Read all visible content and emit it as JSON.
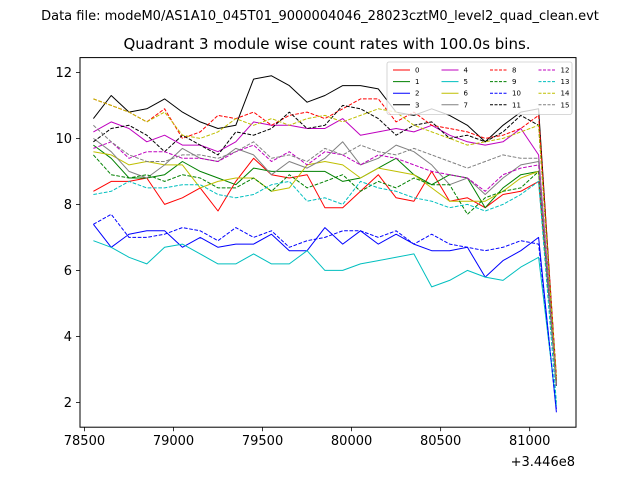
{
  "figure": {
    "suptitle": "Data file: modeM0/AS1A10_045T01_9000004046_28023cztM0_level2_quad_clean.evt",
    "title": "Quadrant 3 module wise count rates with 100.0s bins.",
    "x_offset_label": "+3.446e8"
  },
  "chart_data": {
    "type": "line",
    "title": "Quadrant 3 module wise count rates with 100.0s bins.",
    "xlabel": "",
    "ylabel": "",
    "x_offset": "+3.446e8",
    "xlim": [
      78475,
      81260
    ],
    "ylim": [
      1.25,
      12.45
    ],
    "xticks": [
      78500,
      79000,
      79500,
      80000,
      80500,
      81000
    ],
    "yticks": [
      2,
      4,
      6,
      8,
      10,
      12
    ],
    "grid": false,
    "legend_position": "top-right",
    "legend_columns": 4,
    "x": [
      78550,
      78650,
      78750,
      78850,
      78950,
      79050,
      79150,
      79250,
      79350,
      79450,
      79550,
      79650,
      79750,
      79850,
      79950,
      80050,
      80150,
      80250,
      80350,
      80450,
      80550,
      80650,
      80750,
      80850,
      80950,
      81050,
      81150
    ],
    "series": [
      {
        "name": "0",
        "color": "#ff0000",
        "dash": false,
        "values": [
          8.4,
          8.7,
          8.7,
          8.8,
          8.0,
          8.2,
          8.5,
          7.8,
          8.7,
          9.4,
          8.9,
          8.8,
          8.9,
          7.9,
          7.9,
          8.4,
          8.9,
          8.2,
          8.1,
          9.0,
          8.1,
          8.2,
          7.9,
          8.3,
          8.4,
          8.7,
          2.7
        ]
      },
      {
        "name": "1",
        "color": "#008000",
        "dash": false,
        "values": [
          9.8,
          9.4,
          8.8,
          8.8,
          8.9,
          9.3,
          9.0,
          8.8,
          8.6,
          9.1,
          9.0,
          9.0,
          9.0,
          9.0,
          8.7,
          8.8,
          9.1,
          9.4,
          8.9,
          8.6,
          8.9,
          8.8,
          7.9,
          8.5,
          8.9,
          9.0,
          2.5
        ]
      },
      {
        "name": "2",
        "color": "#0000ff",
        "dash": false,
        "values": [
          7.4,
          6.7,
          7.1,
          7.2,
          7.2,
          6.7,
          7.0,
          6.7,
          6.8,
          6.8,
          7.1,
          6.6,
          6.6,
          7.3,
          6.8,
          7.2,
          6.8,
          7.1,
          6.8,
          6.6,
          6.6,
          6.7,
          5.8,
          6.3,
          6.6,
          7.0,
          1.7
        ]
      },
      {
        "name": "3",
        "color": "#000000",
        "dash": false,
        "values": [
          10.6,
          11.3,
          10.8,
          10.9,
          11.2,
          10.8,
          10.5,
          10.3,
          10.4,
          11.8,
          11.9,
          11.6,
          11.1,
          11.3,
          11.6,
          11.6,
          11.5,
          10.8,
          10.7,
          10.9,
          10.7,
          10.4,
          9.9,
          10.4,
          10.8,
          10.9,
          2.6
        ]
      },
      {
        "name": "4",
        "color": "#bf00bf",
        "dash": false,
        "values": [
          10.2,
          10.5,
          10.3,
          9.9,
          10.1,
          9.8,
          9.8,
          9.6,
          9.9,
          10.5,
          10.4,
          10.4,
          10.3,
          10.3,
          10.6,
          10.1,
          10.2,
          10.3,
          10.2,
          10.4,
          10.1,
          9.9,
          9.8,
          9.9,
          10.3,
          9.5,
          2.6
        ]
      },
      {
        "name": "5",
        "color": "#00bfbf",
        "dash": false,
        "values": [
          6.9,
          6.7,
          6.4,
          6.2,
          6.7,
          6.8,
          6.5,
          6.2,
          6.2,
          6.5,
          6.2,
          6.2,
          6.6,
          6.0,
          6.0,
          6.2,
          6.3,
          6.4,
          6.5,
          5.5,
          5.7,
          6.0,
          5.8,
          5.7,
          6.1,
          6.4,
          1.9
        ]
      },
      {
        "name": "6",
        "color": "#bfbf00",
        "dash": false,
        "values": [
          9.6,
          9.5,
          9.2,
          9.3,
          9.2,
          9.2,
          8.5,
          8.7,
          8.8,
          8.8,
          8.4,
          8.5,
          9.2,
          9.3,
          9.2,
          8.8,
          9.1,
          9.0,
          8.9,
          8.5,
          8.1,
          8.1,
          8.1,
          8.4,
          8.8,
          9.0,
          2.6
        ]
      },
      {
        "name": "7",
        "color": "#808080",
        "dash": false,
        "values": [
          10.0,
          9.6,
          9.0,
          8.8,
          9.2,
          9.7,
          9.4,
          9.3,
          9.7,
          9.5,
          8.9,
          9.3,
          9.1,
          9.4,
          9.9,
          9.2,
          9.4,
          9.8,
          9.6,
          9.2,
          8.6,
          8.8,
          8.3,
          8.8,
          9.2,
          9.3,
          2.5
        ]
      },
      {
        "name": "8",
        "color": "#ff0000",
        "dash": true,
        "values": [
          11.2,
          11.0,
          10.8,
          10.5,
          10.9,
          10.0,
          10.2,
          10.7,
          10.6,
          10.8,
          10.4,
          10.7,
          10.8,
          10.6,
          10.9,
          11.2,
          11.2,
          10.5,
          10.8,
          10.4,
          10.3,
          10.2,
          10.0,
          10.1,
          10.3,
          10.7,
          2.8
        ]
      },
      {
        "name": "9",
        "color": "#008000",
        "dash": true,
        "values": [
          9.5,
          8.9,
          8.8,
          8.9,
          8.7,
          8.9,
          8.8,
          8.5,
          8.5,
          8.8,
          8.4,
          8.9,
          8.5,
          8.7,
          8.9,
          8.4,
          8.7,
          8.5,
          8.8,
          8.6,
          8.6,
          7.7,
          8.2,
          8.4,
          8.5,
          9.0,
          2.5
        ]
      },
      {
        "name": "10",
        "color": "#0000ff",
        "dash": true,
        "values": [
          7.4,
          7.7,
          7.0,
          7.0,
          7.1,
          7.3,
          7.2,
          6.9,
          7.3,
          7.0,
          7.2,
          6.7,
          6.9,
          7.0,
          7.2,
          7.2,
          7.0,
          7.2,
          6.8,
          7.1,
          6.8,
          6.7,
          6.6,
          6.7,
          6.9,
          6.8,
          1.8
        ]
      },
      {
        "name": "11",
        "color": "#000000",
        "dash": true,
        "values": [
          9.9,
          10.3,
          10.4,
          10.1,
          9.6,
          10.1,
          9.8,
          9.5,
          10.2,
          10.1,
          10.3,
          10.8,
          10.3,
          10.4,
          11.0,
          10.9,
          10.6,
          10.1,
          10.4,
          10.5,
          10.0,
          10.1,
          9.9,
          10.2,
          10.7,
          10.4,
          2.7
        ]
      },
      {
        "name": "12",
        "color": "#bf00bf",
        "dash": true,
        "values": [
          9.7,
          9.9,
          9.4,
          9.6,
          9.6,
          9.4,
          9.4,
          9.3,
          9.6,
          9.8,
          9.3,
          9.6,
          9.2,
          9.6,
          9.5,
          9.2,
          9.5,
          9.4,
          9.2,
          9.0,
          8.9,
          8.8,
          8.4,
          8.9,
          9.1,
          9.2,
          2.5
        ]
      },
      {
        "name": "13",
        "color": "#00bfbf",
        "dash": true,
        "values": [
          8.3,
          8.4,
          8.7,
          8.5,
          8.5,
          8.6,
          8.6,
          8.3,
          8.2,
          8.3,
          8.6,
          8.7,
          8.1,
          8.2,
          8.0,
          8.7,
          8.5,
          8.4,
          8.2,
          8.1,
          7.9,
          8.0,
          7.8,
          8.0,
          8.3,
          8.7,
          2.0
        ]
      },
      {
        "name": "14",
        "color": "#bfbf00",
        "dash": true,
        "values": [
          11.2,
          11.0,
          10.8,
          10.5,
          10.8,
          10.1,
          10.0,
          10.2,
          10.6,
          10.4,
          10.6,
          10.4,
          10.6,
          10.7,
          10.5,
          10.7,
          10.9,
          10.8,
          10.4,
          10.2,
          10.0,
          9.8,
          9.9,
          10.0,
          10.2,
          10.4,
          2.7
        ]
      },
      {
        "name": "15",
        "color": "#808080",
        "dash": true,
        "values": [
          10.4,
          9.9,
          9.5,
          9.3,
          9.3,
          9.5,
          9.5,
          9.4,
          9.6,
          9.9,
          9.4,
          9.5,
          9.3,
          9.7,
          9.5,
          9.8,
          9.6,
          9.5,
          9.7,
          9.5,
          9.3,
          9.1,
          9.3,
          9.5,
          9.4,
          9.4,
          2.5
        ]
      }
    ]
  }
}
